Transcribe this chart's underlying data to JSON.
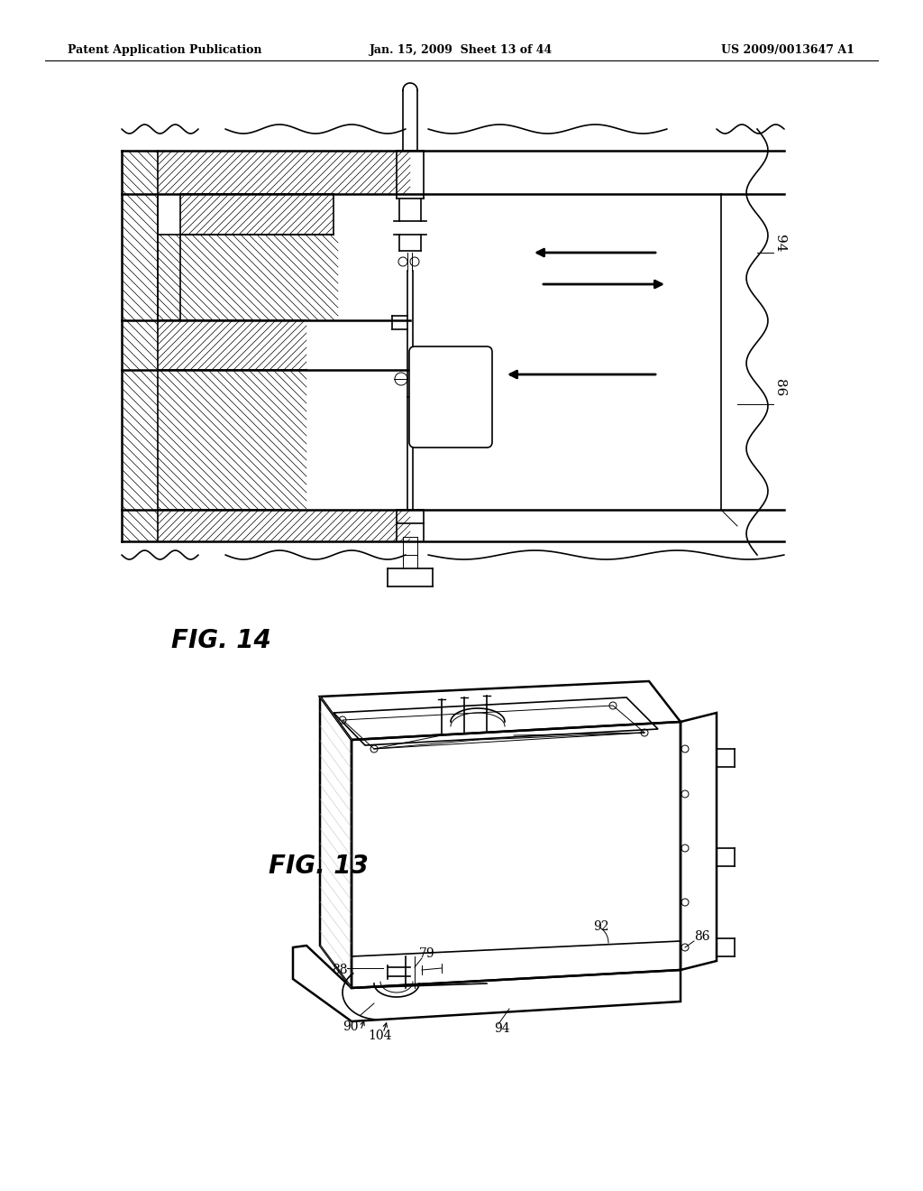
{
  "background_color": "#ffffff",
  "header_left": "Patent Application Publication",
  "header_center": "Jan. 15, 2009  Sheet 13 of 44",
  "header_right": "US 2009/0013647 A1",
  "fig14_label": "FIG. 14",
  "fig13_label": "FIG. 13",
  "label_94_fig14": "94",
  "label_86_fig14": "86",
  "label_88": "88",
  "label_79": "79",
  "label_86_fig13": "86",
  "label_90": "90",
  "label_92": "92",
  "label_94_fig13": "94",
  "label_104": "104"
}
